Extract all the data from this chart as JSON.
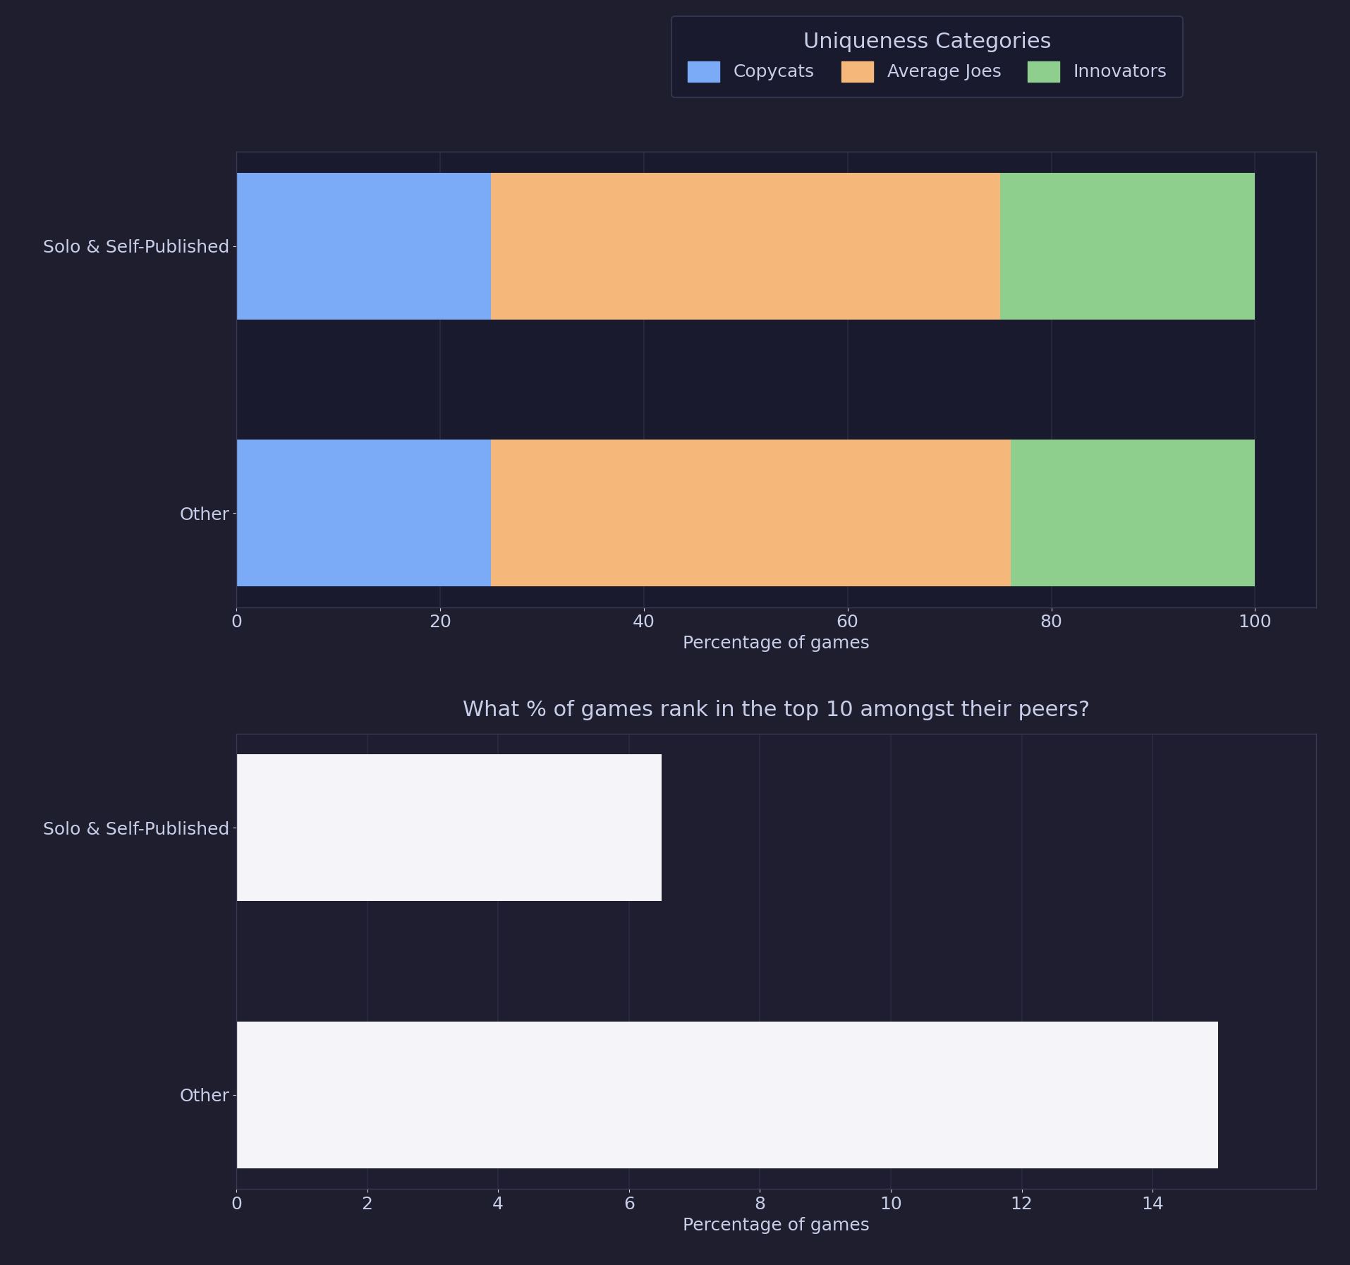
{
  "background_color": "#1e1e2e",
  "chart1": {
    "title": "Uniqueness Categories",
    "categories": [
      "Other",
      "Solo & Self-Published"
    ],
    "copycats": [
      25.0,
      25.0
    ],
    "average_joes": [
      51.0,
      50.0
    ],
    "innovators": [
      24.0,
      25.0
    ],
    "colors": {
      "copycats": "#7baaf7",
      "average_joes": "#f5b87a",
      "innovators": "#8ecf8e"
    },
    "xlabel": "Percentage of games",
    "xlim": [
      0,
      106
    ],
    "xticks": [
      0,
      20,
      40,
      60,
      80,
      100
    ]
  },
  "chart2": {
    "title": "What % of games rank in the top 10 amongst their peers?",
    "categories": [
      "Other",
      "Solo & Self-Published"
    ],
    "values": [
      15.0,
      6.5
    ],
    "bar_color": "#f5f4f8",
    "xlabel": "Percentage of games",
    "xlim": [
      0,
      16.5
    ],
    "xticks": [
      0,
      2,
      4,
      6,
      8,
      10,
      12,
      14
    ]
  },
  "text_color": "#c8cde8",
  "grid_color": "#2a2a40",
  "axes_bg": "#1a1a2e",
  "axes_bg2": "#1e1e30",
  "spine_color": "#3a3a55",
  "title_fontsize": 22,
  "label_fontsize": 18,
  "tick_fontsize": 18,
  "legend_fontsize": 18,
  "ytick_fontsize": 20,
  "bar_height": 0.55
}
